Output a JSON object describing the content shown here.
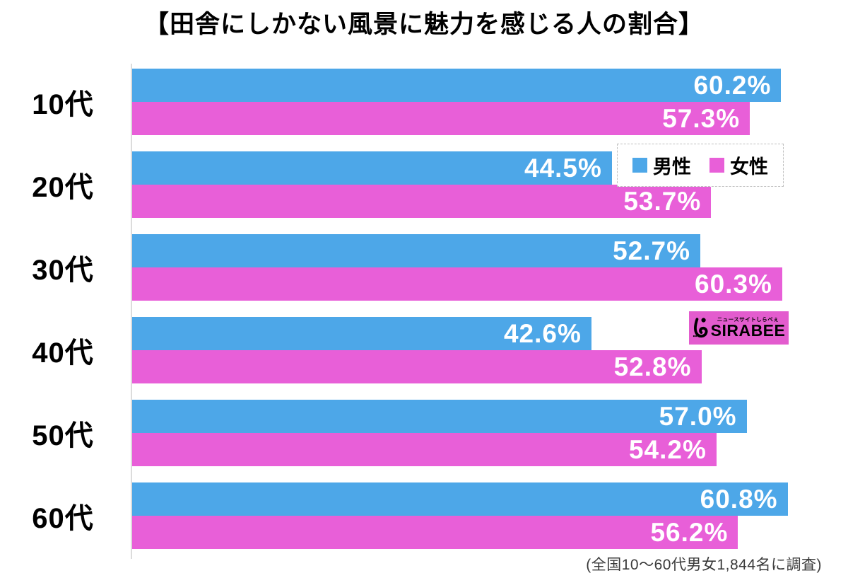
{
  "title": "【田舎にしかない風景に魅力を感じる人の割合】",
  "chart_data": {
    "type": "bar",
    "orientation": "horizontal",
    "title": "【田舎にしかない風景に魅力を感じる人の割合】",
    "categories": [
      "10代",
      "20代",
      "30代",
      "40代",
      "50代",
      "60代"
    ],
    "series": [
      {
        "name": "男性",
        "color": "#4DA7E8",
        "values": [
          60.2,
          44.5,
          52.7,
          42.6,
          57.0,
          60.8
        ]
      },
      {
        "name": "女性",
        "color": "#E85FD8",
        "values": [
          57.3,
          53.7,
          60.3,
          52.8,
          54.2,
          56.2
        ]
      }
    ],
    "value_suffix": "%",
    "value_label_color": "#ffffff",
    "xlim": [
      0,
      66.4
    ],
    "grid": false,
    "legend_position": "top-right-inside"
  },
  "legend": {
    "border_style": "dashed",
    "items": [
      {
        "label": "男性",
        "color": "#4DA7E8"
      },
      {
        "label": "女性",
        "color": "#E85FD8"
      }
    ]
  },
  "logo": {
    "top_text": "ニュースサイトしらべぇ",
    "name": "SIRABEE",
    "bg_color": "#E35CCE",
    "text_color": "#000000"
  },
  "footer": {
    "note": "(全国10〜60代男女1,844名に調査)"
  }
}
